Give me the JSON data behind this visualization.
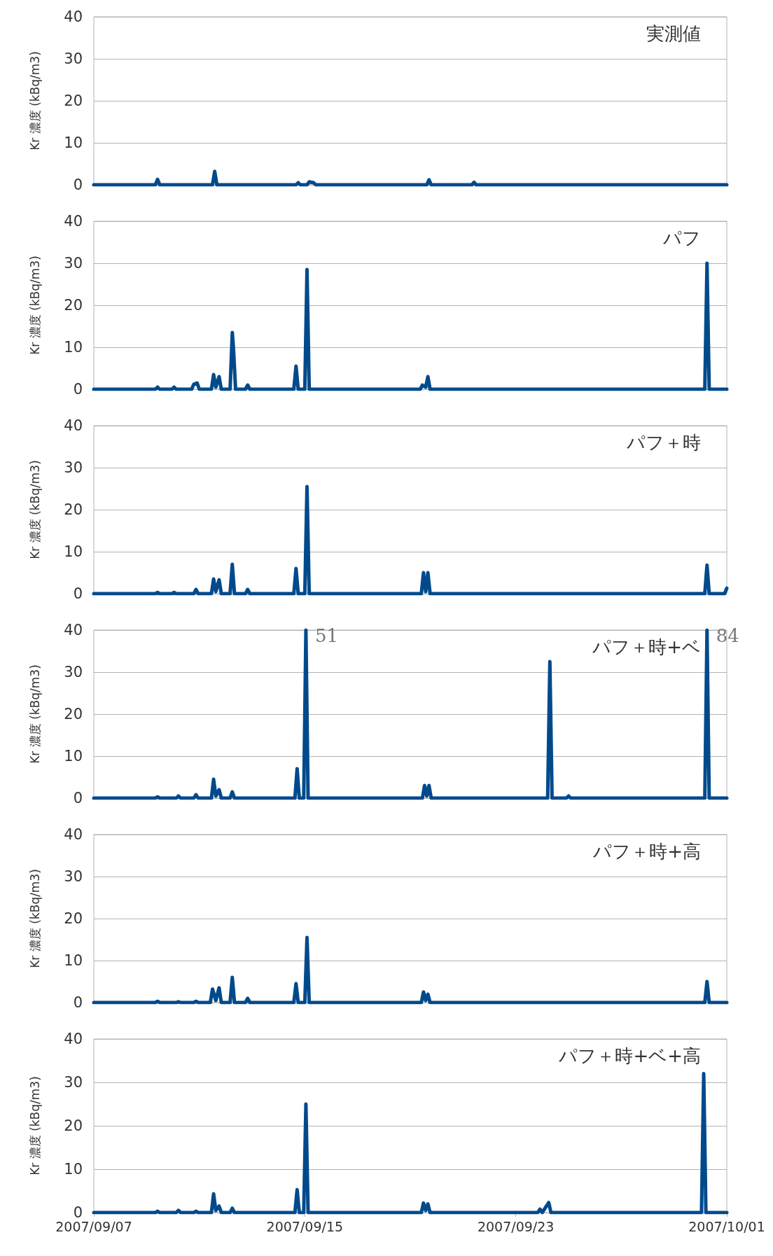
{
  "chart_data": [
    {
      "type": "line",
      "title": "実測値",
      "ylabel": "Kr 濃度 (kBq/m3)",
      "xlim": [
        "2007-09-07T00:00",
        "2007-10-01T00:00"
      ],
      "ylim": [
        0,
        40
      ],
      "yticks": [
        0,
        10,
        20,
        30,
        40
      ],
      "grid": "y",
      "tick_labels": "y",
      "marker": "none",
      "line_style": "solid",
      "series": [
        {
          "color": "#004a8c",
          "x": [
            "2007-09-07T00:00",
            "2007-09-09T08:00",
            "2007-09-09T10:00",
            "2007-09-09T12:00",
            "2007-09-11T12:00",
            "2007-09-11T14:00",
            "2007-09-11T16:00",
            "2007-09-14T16:00",
            "2007-09-14T18:00",
            "2007-09-14T20:00",
            "2007-09-15T02:00",
            "2007-09-15T04:00",
            "2007-09-15T08:00",
            "2007-09-15T10:00",
            "2007-09-19T15:00",
            "2007-09-19T17:00",
            "2007-09-19T19:00",
            "2007-09-21T08:00",
            "2007-09-21T10:00",
            "2007-09-21T12:00",
            "2007-10-01T00:00"
          ],
          "values": [
            0,
            0,
            1.3,
            0,
            0,
            3.2,
            0,
            0,
            0.5,
            0,
            0,
            0.7,
            0.5,
            0,
            0,
            1.2,
            0,
            0,
            0.6,
            0,
            0
          ]
        }
      ]
    },
    {
      "type": "line",
      "title": "パフ",
      "ylabel": "Kr 濃度 (kBq/m3)",
      "xlim": [
        "2007-09-07T00:00",
        "2007-10-01T00:00"
      ],
      "ylim": [
        0,
        40
      ],
      "yticks": [
        0,
        10,
        20,
        30,
        40
      ],
      "grid": "y",
      "tick_labels": "y",
      "marker": "none",
      "line_style": "solid",
      "series": [
        {
          "color": "#004a8c",
          "x": [
            "2007-09-07T00:00",
            "2007-09-09T08:00",
            "2007-09-09T10:00",
            "2007-09-09T12:00",
            "2007-09-09T23:00",
            "2007-09-10T01:00",
            "2007-09-10T03:00",
            "2007-09-10T17:00",
            "2007-09-10T19:00",
            "2007-09-10T22:00",
            "2007-09-11T00:00",
            "2007-09-11T11:00",
            "2007-09-11T13:00",
            "2007-09-11T15:00",
            "2007-09-11T18:00",
            "2007-09-11T20:00",
            "2007-09-12T04:00",
            "2007-09-12T06:00",
            "2007-09-12T07:00",
            "2007-09-12T09:00",
            "2007-09-12T18:00",
            "2007-09-12T20:00",
            "2007-09-12T22:00",
            "2007-09-14T14:00",
            "2007-09-14T16:00",
            "2007-09-14T18:00",
            "2007-09-15T00:00",
            "2007-09-15T02:00",
            "2007-09-15T04:00",
            "2007-09-19T09:00",
            "2007-09-19T11:00",
            "2007-09-19T14:00",
            "2007-09-19T16:00",
            "2007-09-19T18:00",
            "2007-09-30T04:00",
            "2007-09-30T06:00",
            "2007-09-30T08:00",
            "2007-10-01T00:00"
          ],
          "values": [
            0,
            0,
            0.5,
            0,
            0,
            0.5,
            0,
            0,
            1.2,
            1.5,
            0,
            0,
            3.5,
            0.5,
            3,
            0,
            0,
            13.5,
            10,
            0,
            0,
            1,
            0,
            0,
            5.5,
            0,
            0,
            28.5,
            0,
            0,
            1,
            0.5,
            3,
            0,
            0,
            30,
            0,
            0
          ]
        }
      ]
    },
    {
      "type": "line",
      "title": "パフ＋時",
      "ylabel": "Kr 濃度 (kBq/m3)",
      "xlim": [
        "2007-09-07T00:00",
        "2007-10-01T00:00"
      ],
      "ylim": [
        0,
        40
      ],
      "yticks": [
        0,
        10,
        20,
        30,
        40
      ],
      "grid": "y",
      "tick_labels": "y",
      "marker": "none",
      "line_style": "solid",
      "series": [
        {
          "color": "#004a8c",
          "x": [
            "2007-09-07T00:00",
            "2007-09-09T08:00",
            "2007-09-09T10:00",
            "2007-09-09T12:00",
            "2007-09-09T23:00",
            "2007-09-10T01:00",
            "2007-09-10T03:00",
            "2007-09-10T19:00",
            "2007-09-10T21:00",
            "2007-09-10T23:00",
            "2007-09-11T11:00",
            "2007-09-11T13:00",
            "2007-09-11T15:00",
            "2007-09-11T18:00",
            "2007-09-11T20:00",
            "2007-09-12T04:00",
            "2007-09-12T06:00",
            "2007-09-12T08:00",
            "2007-09-12T18:00",
            "2007-09-12T20:00",
            "2007-09-12T22:00",
            "2007-09-14T14:00",
            "2007-09-14T16:00",
            "2007-09-14T18:00",
            "2007-09-15T00:00",
            "2007-09-15T02:00",
            "2007-09-15T04:00",
            "2007-09-19T10:00",
            "2007-09-19T12:00",
            "2007-09-19T14:00",
            "2007-09-19T16:00",
            "2007-09-19T18:00",
            "2007-09-30T04:00",
            "2007-09-30T06:00",
            "2007-09-30T08:00",
            "2007-09-30T22:00",
            "2007-10-01T00:00"
          ],
          "values": [
            0,
            0,
            0.3,
            0,
            0,
            0.3,
            0,
            0,
            1,
            0,
            0,
            3.5,
            0.5,
            3.3,
            0,
            0,
            7,
            0,
            0,
            1,
            0,
            0,
            6,
            0,
            0,
            25.5,
            0,
            0,
            5,
            0.5,
            5,
            0,
            0,
            6.8,
            0,
            0,
            1.3
          ]
        }
      ]
    },
    {
      "type": "line",
      "title": "パフ＋時+ベ",
      "ylabel": "Kr 濃度 (kBq/m3)",
      "xlim": [
        "2007-09-07T00:00",
        "2007-10-01T00:00"
      ],
      "ylim": [
        0,
        40
      ],
      "yticks": [
        0,
        10,
        20,
        30,
        40
      ],
      "grid": "y",
      "tick_labels": "y",
      "marker": "none",
      "line_style": "solid",
      "annotations": [
        {
          "text": "51",
          "x": "2007-09-15T01:00",
          "y": 40
        },
        {
          "text": "84",
          "x": "2007-09-30T06:00",
          "y": 40
        }
      ],
      "series": [
        {
          "color": "#004a8c",
          "x": [
            "2007-09-07T00:00",
            "2007-09-09T08:00",
            "2007-09-09T10:00",
            "2007-09-09T12:00",
            "2007-09-10T03:00",
            "2007-09-10T05:00",
            "2007-09-10T07:00",
            "2007-09-10T19:00",
            "2007-09-10T21:00",
            "2007-09-10T23:00",
            "2007-09-11T11:00",
            "2007-09-11T13:00",
            "2007-09-11T15:00",
            "2007-09-11T18:00",
            "2007-09-11T20:00",
            "2007-09-12T04:00",
            "2007-09-12T06:00",
            "2007-09-12T08:00",
            "2007-09-14T15:00",
            "2007-09-14T17:00",
            "2007-09-14T19:00",
            "2007-09-14T23:00",
            "2007-09-15T01:00",
            "2007-09-15T03:00",
            "2007-09-19T11:00",
            "2007-09-19T13:00",
            "2007-09-19T15:00",
            "2007-09-19T17:00",
            "2007-09-19T19:00",
            "2007-09-24T05:00",
            "2007-09-24T07:00",
            "2007-09-24T09:00",
            "2007-09-24T22:00",
            "2007-09-25T00:00",
            "2007-09-25T02:00",
            "2007-09-30T04:00",
            "2007-09-30T06:00",
            "2007-09-30T08:00",
            "2007-10-01T00:00"
          ],
          "values": [
            0,
            0,
            0.3,
            0,
            0,
            0.5,
            0,
            0,
            0.8,
            0,
            0,
            4.5,
            0.5,
            2,
            0,
            0,
            1.5,
            0,
            0,
            7,
            0,
            0,
            40,
            0,
            0,
            3,
            0.5,
            3,
            0,
            0,
            32.5,
            0,
            0,
            0.5,
            0,
            0,
            40,
            0,
            0
          ]
        }
      ]
    },
    {
      "type": "line",
      "title": "パフ＋時+高",
      "ylabel": "Kr 濃度 (kBq/m3)",
      "xlim": [
        "2007-09-07T00:00",
        "2007-10-01T00:00"
      ],
      "ylim": [
        0,
        40
      ],
      "yticks": [
        0,
        10,
        20,
        30,
        40
      ],
      "grid": "y",
      "tick_labels": "y",
      "marker": "none",
      "line_style": "solid",
      "series": [
        {
          "color": "#004a8c",
          "x": [
            "2007-09-07T00:00",
            "2007-09-09T08:00",
            "2007-09-09T10:00",
            "2007-09-09T12:00",
            "2007-09-10T03:00",
            "2007-09-10T05:00",
            "2007-09-10T07:00",
            "2007-09-10T19:00",
            "2007-09-10T21:00",
            "2007-09-10T23:00",
            "2007-09-11T10:00",
            "2007-09-11T12:00",
            "2007-09-11T15:00",
            "2007-09-11T18:00",
            "2007-09-11T20:00",
            "2007-09-12T04:00",
            "2007-09-12T06:00",
            "2007-09-12T08:00",
            "2007-09-12T18:00",
            "2007-09-12T20:00",
            "2007-09-12T22:00",
            "2007-09-14T14:00",
            "2007-09-14T16:00",
            "2007-09-14T18:00",
            "2007-09-15T00:00",
            "2007-09-15T02:00",
            "2007-09-15T04:00",
            "2007-09-19T10:00",
            "2007-09-19T12:00",
            "2007-09-19T14:00",
            "2007-09-19T16:00",
            "2007-09-19T18:00",
            "2007-09-30T04:00",
            "2007-09-30T06:00",
            "2007-09-30T08:00",
            "2007-10-01T00:00"
          ],
          "values": [
            0,
            0,
            0.3,
            0,
            0,
            0.2,
            0,
            0,
            0.3,
            0,
            0,
            3.2,
            0.5,
            3.5,
            0,
            0,
            6,
            0,
            0,
            1,
            0,
            0,
            4.5,
            0,
            0,
            15.5,
            0,
            0,
            2.5,
            0.5,
            2,
            0,
            0,
            5,
            0,
            0
          ]
        }
      ]
    },
    {
      "type": "line",
      "title": "パフ＋時+ベ+高",
      "ylabel": "Kr 濃度 (kBq/m3)",
      "xlim": [
        "2007-09-07T00:00",
        "2007-10-01T00:00"
      ],
      "ylim": [
        0,
        40
      ],
      "yticks": [
        0,
        10,
        20,
        30,
        40
      ],
      "xticks": [
        {
          "value": "2007-09-07T00:00",
          "label": "2007/09/07"
        },
        {
          "value": "2007-09-15T00:00",
          "label": "2007/09/15"
        },
        {
          "value": "2007-09-23T00:00",
          "label": "2007/09/23"
        },
        {
          "value": "2007-10-01T00:00",
          "label": "2007/10/01"
        }
      ],
      "grid": "y",
      "marker": "none",
      "line_style": "solid",
      "series": [
        {
          "color": "#004a8c",
          "x": [
            "2007-09-07T00:00",
            "2007-09-09T08:00",
            "2007-09-09T10:00",
            "2007-09-09T12:00",
            "2007-09-10T03:00",
            "2007-09-10T05:00",
            "2007-09-10T07:00",
            "2007-09-10T19:00",
            "2007-09-10T21:00",
            "2007-09-10T23:00",
            "2007-09-11T11:00",
            "2007-09-11T13:00",
            "2007-09-11T15:00",
            "2007-09-11T18:00",
            "2007-09-11T20:00",
            "2007-09-12T04:00",
            "2007-09-12T06:00",
            "2007-09-12T08:00",
            "2007-09-14T15:00",
            "2007-09-14T17:00",
            "2007-09-14T19:00",
            "2007-09-14T23:00",
            "2007-09-15T01:00",
            "2007-09-15T03:00",
            "2007-09-19T10:00",
            "2007-09-19T12:00",
            "2007-09-19T14:00",
            "2007-09-19T16:00",
            "2007-09-19T18:00",
            "2007-09-23T20:00",
            "2007-09-23T22:00",
            "2007-09-24T00:00",
            "2007-09-24T06:00",
            "2007-09-24T08:00",
            "2007-09-30T01:00",
            "2007-09-30T03:00",
            "2007-09-30T05:00",
            "2007-10-01T00:00"
          ],
          "values": [
            0,
            0,
            0.3,
            0,
            0,
            0.5,
            0,
            0,
            0.3,
            0,
            0,
            4.3,
            0.5,
            1.5,
            0,
            0,
            1,
            0,
            0,
            5.3,
            0,
            0,
            25,
            0,
            0,
            2.2,
            0.5,
            2,
            0,
            0,
            0.8,
            0,
            2.3,
            0,
            0,
            32,
            0,
            0
          ]
        }
      ]
    }
  ]
}
